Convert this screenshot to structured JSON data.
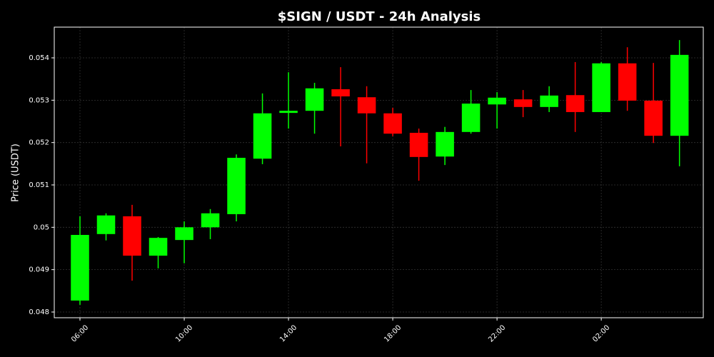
{
  "chart_data": {
    "type": "candlestick",
    "title": "$SIGN / USDT - 24h Analysis",
    "ylabel": "Price (USDT)",
    "categories": [
      "06:00",
      null,
      null,
      null,
      "10:00",
      null,
      null,
      null,
      "14:00",
      null,
      null,
      null,
      "18:00",
      null,
      null,
      null,
      "22:00",
      null,
      null,
      null,
      "02:00",
      null,
      null,
      null
    ],
    "open": [
      0.04827,
      0.04984,
      0.05026,
      0.04933,
      0.0497,
      0.05,
      0.05031,
      0.05162,
      0.0527,
      0.05275,
      0.05326,
      0.05307,
      0.05269,
      0.05223,
      0.05167,
      0.05225,
      0.0529,
      0.05302,
      0.05284,
      0.05312,
      0.05272,
      0.05387,
      0.05299,
      0.05216
    ],
    "high": [
      0.05026,
      0.05033,
      0.05053,
      0.04977,
      0.05014,
      0.05043,
      0.05172,
      0.05316,
      0.05366,
      0.05341,
      0.05378,
      0.05333,
      0.05282,
      0.05233,
      0.05237,
      0.05324,
      0.05319,
      0.05324,
      0.05333,
      0.0539,
      0.0539,
      0.05425,
      0.05388,
      0.05442
    ],
    "low": [
      0.04817,
      0.04969,
      0.04874,
      0.04903,
      0.04915,
      0.04972,
      0.05014,
      0.05149,
      0.05233,
      0.05221,
      0.05191,
      0.05151,
      0.05215,
      0.0511,
      0.05147,
      0.05221,
      0.05233,
      0.0526,
      0.05272,
      0.05225,
      0.05272,
      0.05275,
      0.05199,
      0.05144
    ],
    "close": [
      0.04982,
      0.05028,
      0.04933,
      0.04975,
      0.05,
      0.05033,
      0.05164,
      0.05269,
      0.05275,
      0.05328,
      0.05309,
      0.05269,
      0.05221,
      0.05166,
      0.05225,
      0.05292,
      0.05306,
      0.05284,
      0.05311,
      0.05272,
      0.05387,
      0.05299,
      0.05216,
      0.05407
    ],
    "up_color": "#00ff00",
    "down_color": "#ff0000",
    "ylim": [
      0.047865,
      0.054725
    ],
    "yticks": [
      0.048,
      0.049,
      0.05,
      0.051,
      0.052,
      0.053,
      0.054
    ],
    "grid": true
  }
}
